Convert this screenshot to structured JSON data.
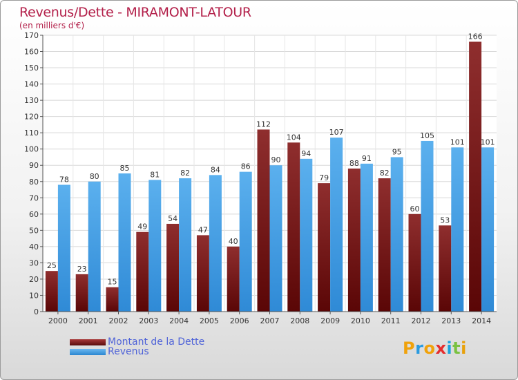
{
  "title": "Revenus/Dette - MIRAMONT-LATOUR",
  "subtitle": "(en milliers d'€)",
  "chart_data": {
    "type": "bar",
    "categories": [
      "2000",
      "2001",
      "2002",
      "2003",
      "2004",
      "2005",
      "2006",
      "2007",
      "2008",
      "2009",
      "2010",
      "2011",
      "2012",
      "2013",
      "2014"
    ],
    "series": [
      {
        "name": "Montant de la Dette",
        "color": "#7a1414",
        "values": [
          25,
          23,
          15,
          49,
          54,
          47,
          40,
          112,
          104,
          79,
          88,
          82,
          60,
          53,
          166
        ]
      },
      {
        "name": "Revenus",
        "color": "#3a9be6",
        "values": [
          78,
          80,
          85,
          81,
          82,
          84,
          86,
          90,
          94,
          107,
          91,
          95,
          105,
          101,
          101
        ]
      }
    ],
    "ylim": [
      0,
      170
    ],
    "yticks": [
      0,
      10,
      20,
      30,
      40,
      50,
      60,
      70,
      80,
      90,
      100,
      110,
      120,
      130,
      140,
      150,
      160,
      170
    ],
    "grid": true,
    "legend_position": "bottom-left"
  },
  "legend": {
    "debt_label": "Montant de la Dette",
    "revenue_label": "Revenus"
  },
  "logo": {
    "letters": [
      "P",
      "r",
      "o",
      "x",
      "i",
      "t",
      "i"
    ],
    "colors": [
      "#f0a20b",
      "#2a9be0",
      "#f0a20b",
      "#e52d2d",
      "#1aa3dd",
      "#7ac142",
      "#e8a10c"
    ]
  }
}
